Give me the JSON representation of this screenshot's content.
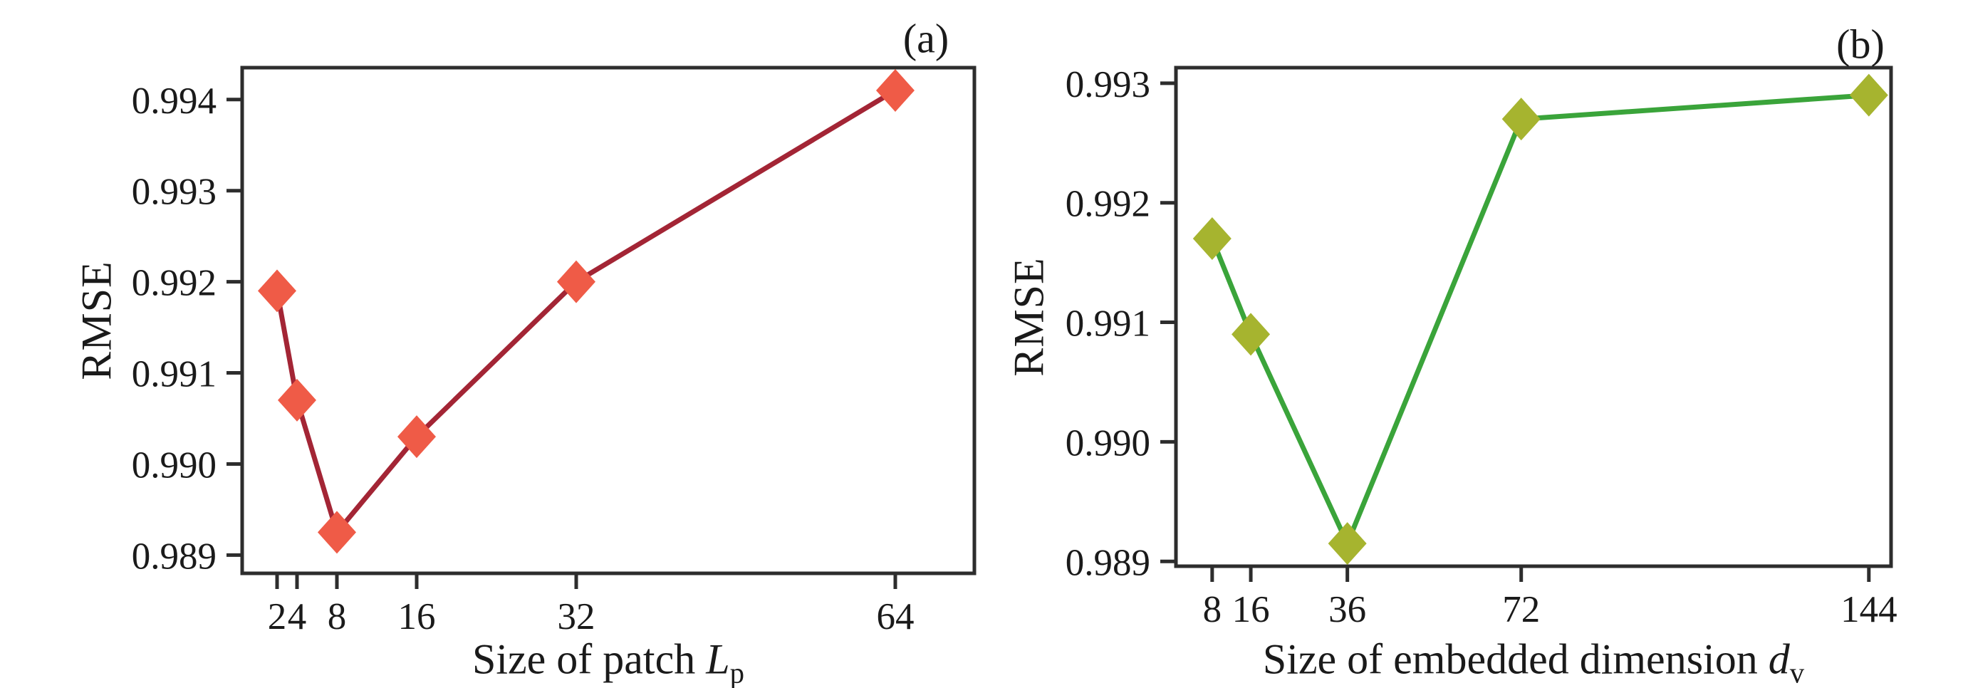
{
  "chart_data": [
    {
      "type": "line",
      "panel_label": "(a)",
      "title": "",
      "ylabel": "RMSE",
      "xlabel": "Size of patch Lp",
      "xlabel_parts": {
        "prefix": "Size of patch ",
        "symbol": "L",
        "subscript": "p"
      },
      "x": [
        2,
        4,
        8,
        16,
        32,
        64
      ],
      "series": [
        {
          "name": "RMSE",
          "values": [
            0.9919,
            0.9907,
            0.98925,
            0.9903,
            0.992,
            0.9941
          ]
        }
      ],
      "x_tick_labels": [
        "2",
        "4",
        "8",
        "16",
        "32",
        "64"
      ],
      "y_ticks": [
        {
          "value": 0.994,
          "label": "0.994"
        },
        {
          "value": 0.993,
          "label": "0.993"
        },
        {
          "value": 0.992,
          "label": "0.992"
        },
        {
          "value": 0.991,
          "label": "0.991"
        },
        {
          "value": 0.99,
          "label": "0.990"
        },
        {
          "value": 0.989,
          "label": "0.989"
        }
      ],
      "xlim": [
        -1.5,
        71.93
      ],
      "ylim": [
        0.9888,
        0.99435
      ],
      "grid": false,
      "legend": "none",
      "line_color": "#a32535",
      "marker_color": "#ef5b47",
      "marker_shape": "diamond"
    },
    {
      "type": "line",
      "panel_label": "(b)",
      "title": "",
      "ylabel": "RMSE",
      "xlabel": "Size of embedded dimension dv",
      "xlabel_parts": {
        "prefix": "Size of embedded dimension ",
        "symbol": "d",
        "subscript": "v"
      },
      "x": [
        8,
        16,
        36,
        72,
        144
      ],
      "series": [
        {
          "name": "RMSE",
          "values": [
            0.9917,
            0.9909,
            0.98915,
            0.9927,
            0.9929
          ]
        }
      ],
      "x_tick_labels": [
        "8",
        "16",
        "36",
        "72",
        "144"
      ],
      "y_ticks": [
        {
          "value": 0.993,
          "label": "0.993"
        },
        {
          "value": 0.992,
          "label": "0.992"
        },
        {
          "value": 0.991,
          "label": "0.991"
        },
        {
          "value": 0.99,
          "label": "0.990"
        },
        {
          "value": 0.989,
          "label": "0.989"
        }
      ],
      "xlim": [
        0.5,
        148.6
      ],
      "ylim": [
        0.98896,
        0.99313
      ],
      "grid": false,
      "legend": "none",
      "line_color": "#3aa43a",
      "marker_color": "#a6b42f",
      "marker_shape": "diamond"
    }
  ]
}
